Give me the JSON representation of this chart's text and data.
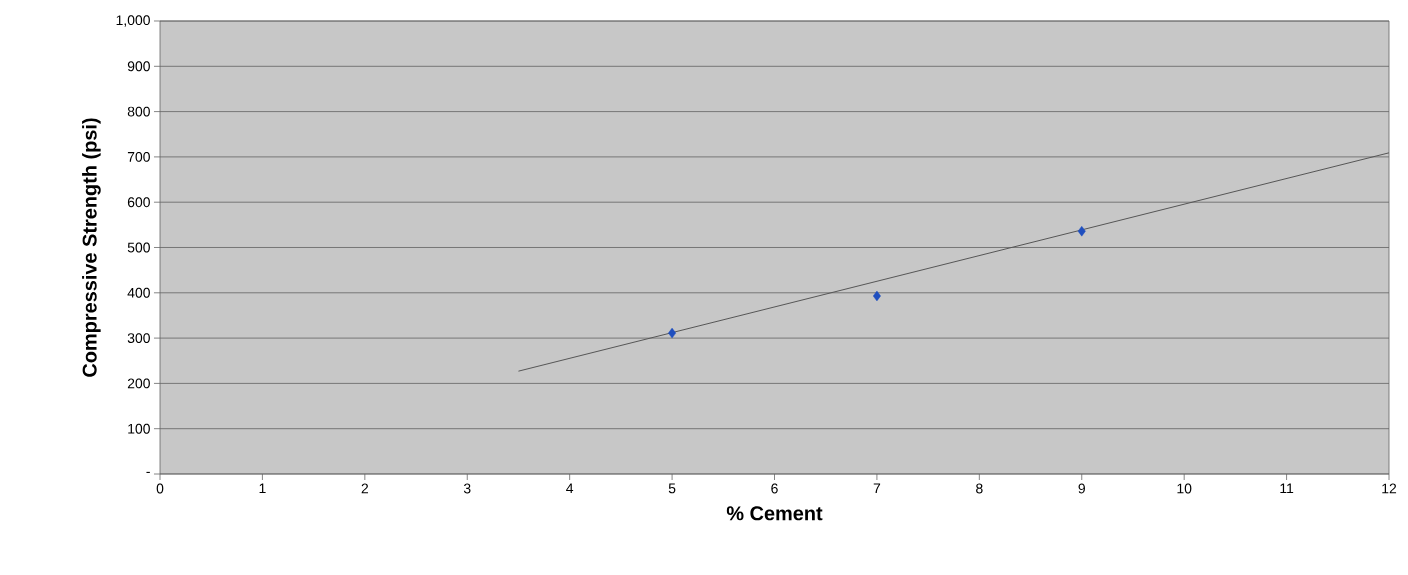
{
  "chart_data": {
    "type": "scatter",
    "xlabel": "% Cement",
    "ylabel": "Compressive Strength (psi)",
    "xlim": [
      0,
      12
    ],
    "ylim": [
      0,
      1000
    ],
    "xticks": [
      0,
      1,
      2,
      3,
      4,
      5,
      6,
      7,
      8,
      9,
      10,
      11,
      12
    ],
    "yticks": [
      {
        "value": 0,
        "label": "-"
      },
      100,
      200,
      300,
      400,
      500,
      600,
      700,
      800,
      900,
      {
        "value": 1000,
        "label": "1,000"
      }
    ],
    "grid": "y",
    "series": [
      {
        "type": "scatter",
        "marker": "diamond",
        "color": "#1f4fbf",
        "x": [
          5,
          7,
          9
        ],
        "values": [
          311,
          393,
          536
        ]
      },
      {
        "type": "line",
        "marker": "none",
        "line_style": "solid",
        "color": "#555555",
        "x": [
          3.5,
          12
        ],
        "values": [
          227,
          709
        ]
      }
    ]
  }
}
